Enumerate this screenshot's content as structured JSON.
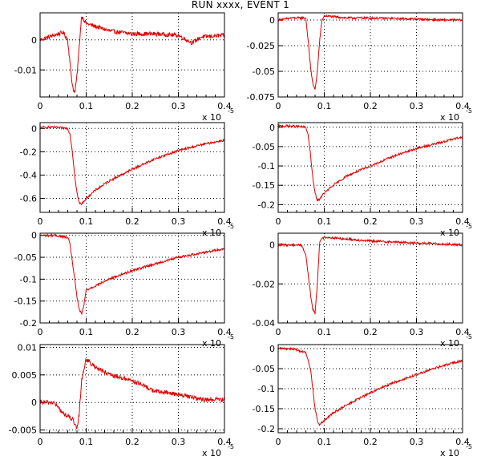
{
  "title": "RUN xxxx, EVENT    1",
  "x_multiplier": {
    "base": "x 10",
    "exponent": "-5"
  },
  "colors": {
    "trace": "#e00000",
    "frame": "#000000",
    "grid": "#000000"
  },
  "chart_data": [
    {
      "type": "line",
      "xlim": [
        0,
        0.4
      ],
      "ylim": [
        -0.019,
        0.009
      ],
      "xticks": [
        "0",
        "0.1",
        "0.2",
        "0.3",
        "0.4"
      ],
      "yticks": [
        {
          "v": 0,
          "label": "0"
        },
        {
          "v": -0.01,
          "label": "-0.01"
        }
      ],
      "grid": true,
      "series": [
        {
          "x": [
            0,
            0.02,
            0.05,
            0.06,
            0.065,
            0.07,
            0.075,
            0.08,
            0.085,
            0.09,
            0.1,
            0.12,
            0.15,
            0.2,
            0.25,
            0.3,
            0.33,
            0.35,
            0.4
          ],
          "y": [
            0,
            0.001,
            0.0025,
            0.0,
            -0.008,
            -0.015,
            -0.018,
            -0.012,
            -0.002,
            0.008,
            0.0055,
            0.0045,
            0.003,
            0.002,
            0.002,
            0.0015,
            -0.001,
            0.001,
            0.0015
          ]
        }
      ]
    },
    {
      "type": "line",
      "xlim": [
        0,
        0.4
      ],
      "ylim": [
        -0.075,
        0.007
      ],
      "xticks": [
        "0",
        "0.1",
        "0.2",
        "0.3",
        "0.4"
      ],
      "yticks": [
        {
          "v": 0,
          "label": "0"
        },
        {
          "v": -0.025,
          "label": "-0.025"
        },
        {
          "v": -0.05,
          "label": "-0.05"
        },
        {
          "v": -0.075,
          "label": "-0.075"
        }
      ],
      "grid": true,
      "series": [
        {
          "x": [
            0,
            0.03,
            0.06,
            0.065,
            0.07,
            0.075,
            0.08,
            0.085,
            0.09,
            0.095,
            0.1,
            0.15,
            0.2,
            0.3,
            0.35,
            0.4
          ],
          "y": [
            0,
            0.002,
            0.002,
            -0.02,
            -0.045,
            -0.062,
            -0.068,
            -0.05,
            -0.02,
            0.0,
            0.004,
            0.002,
            0.002,
            0.001,
            0.0,
            0.0
          ]
        }
      ]
    },
    {
      "type": "line",
      "xlim": [
        0,
        0.4
      ],
      "ylim": [
        -0.72,
        0.05
      ],
      "xticks": [
        "0",
        "0.1",
        "0.2",
        "0.3",
        "0.4"
      ],
      "yticks": [
        {
          "v": 0,
          "label": "0"
        },
        {
          "v": -0.2,
          "label": "-0.2"
        },
        {
          "v": -0.4,
          "label": "-0.4"
        },
        {
          "v": -0.6,
          "label": "-0.6"
        }
      ],
      "grid": true,
      "series": [
        {
          "x": [
            0,
            0.03,
            0.06,
            0.065,
            0.07,
            0.075,
            0.08,
            0.085,
            0.09,
            0.1,
            0.12,
            0.15,
            0.2,
            0.25,
            0.3,
            0.35,
            0.4
          ],
          "y": [
            0.01,
            0.01,
            0.0,
            -0.05,
            -0.2,
            -0.4,
            -0.55,
            -0.64,
            -0.65,
            -0.6,
            -0.53,
            -0.45,
            -0.35,
            -0.26,
            -0.19,
            -0.14,
            -0.1
          ]
        }
      ]
    },
    {
      "type": "line",
      "xlim": [
        0,
        0.4
      ],
      "ylim": [
        -0.22,
        0.012
      ],
      "xticks": [
        "0",
        "0.1",
        "0.2",
        "0.3",
        "0.4"
      ],
      "yticks": [
        {
          "v": 0,
          "label": "0"
        },
        {
          "v": -0.05,
          "label": "-0.05"
        },
        {
          "v": -0.1,
          "label": "-0.1"
        },
        {
          "v": -0.15,
          "label": "-0.15"
        },
        {
          "v": -0.2,
          "label": "-0.2"
        }
      ],
      "grid": true,
      "series": [
        {
          "x": [
            0,
            0.03,
            0.06,
            0.065,
            0.07,
            0.075,
            0.08,
            0.085,
            0.09,
            0.1,
            0.12,
            0.15,
            0.2,
            0.25,
            0.3,
            0.35,
            0.4
          ],
          "y": [
            0.003,
            0.003,
            0.0,
            -0.02,
            -0.07,
            -0.13,
            -0.17,
            -0.19,
            -0.185,
            -0.17,
            -0.15,
            -0.125,
            -0.1,
            -0.075,
            -0.055,
            -0.04,
            -0.025
          ]
        }
      ]
    },
    {
      "type": "line",
      "xlim": [
        0,
        0.4
      ],
      "ylim": [
        -0.2,
        0.005
      ],
      "xticks": [
        "0",
        "0.1",
        "0.2",
        "0.3",
        "0.4"
      ],
      "yticks": [
        {
          "v": 0,
          "label": "0"
        },
        {
          "v": -0.05,
          "label": "-0.05"
        },
        {
          "v": -0.1,
          "label": "-0.1"
        },
        {
          "v": -0.15,
          "label": "-0.15"
        },
        {
          "v": -0.2,
          "label": "-0.2"
        }
      ],
      "grid": true,
      "series": [
        {
          "x": [
            0,
            0.03,
            0.06,
            0.065,
            0.07,
            0.075,
            0.08,
            0.085,
            0.09,
            0.095,
            0.1,
            0.12,
            0.15,
            0.2,
            0.25,
            0.3,
            0.35,
            0.4
          ],
          "y": [
            0.0,
            0.0,
            -0.005,
            -0.02,
            -0.06,
            -0.1,
            -0.14,
            -0.17,
            -0.18,
            -0.16,
            -0.125,
            -0.115,
            -0.1,
            -0.08,
            -0.065,
            -0.05,
            -0.04,
            -0.03
          ]
        }
      ]
    },
    {
      "type": "line",
      "xlim": [
        0,
        0.4
      ],
      "ylim": [
        -0.04,
        0.006
      ],
      "xticks": [
        "0",
        "0.1",
        "0.2",
        "0.3",
        "0.4"
      ],
      "yticks": [
        {
          "v": 0,
          "label": "0"
        },
        {
          "v": -0.02,
          "label": "-0.02"
        },
        {
          "v": -0.04,
          "label": "-0.04"
        }
      ],
      "grid": true,
      "series": [
        {
          "x": [
            0,
            0.02,
            0.05,
            0.06,
            0.065,
            0.07,
            0.075,
            0.08,
            0.085,
            0.09,
            0.1,
            0.15,
            0.2,
            0.3,
            0.4
          ],
          "y": [
            0.0,
            0.0,
            0.0,
            -0.005,
            -0.015,
            -0.025,
            -0.033,
            -0.035,
            -0.02,
            0.002,
            0.004,
            0.003,
            0.002,
            0.001,
            0.0
          ]
        }
      ]
    },
    {
      "type": "line",
      "xlim": [
        0,
        0.4
      ],
      "ylim": [
        -0.0055,
        0.0105
      ],
      "xticks": [
        "0",
        "0.1",
        "0.2",
        "0.3",
        "0.4"
      ],
      "yticks": [
        {
          "v": 0.01,
          "label": "0.01"
        },
        {
          "v": 0.005,
          "label": "0.005"
        },
        {
          "v": 0,
          "label": "0"
        },
        {
          "v": -0.005,
          "label": "-0.005"
        }
      ],
      "grid": true,
      "series": [
        {
          "x": [
            0,
            0.03,
            0.05,
            0.07,
            0.08,
            0.085,
            0.09,
            0.1,
            0.11,
            0.15,
            0.2,
            0.25,
            0.3,
            0.35,
            0.4
          ],
          "y": [
            0.0,
            0.0,
            -0.002,
            -0.003,
            -0.005,
            -0.002,
            0.004,
            0.008,
            0.007,
            0.005,
            0.004,
            0.002,
            0.0015,
            0.0005,
            0.0005
          ]
        }
      ]
    },
    {
      "type": "line",
      "xlim": [
        0,
        0.4
      ],
      "ylim": [
        -0.21,
        0.01
      ],
      "xticks": [
        "0",
        "0.1",
        "0.2",
        "0.3",
        "0.4"
      ],
      "yticks": [
        {
          "v": 0,
          "label": "0"
        },
        {
          "v": -0.05,
          "label": "-0.05"
        },
        {
          "v": -0.1,
          "label": "-0.1"
        },
        {
          "v": -0.15,
          "label": "-0.15"
        },
        {
          "v": -0.2,
          "label": "-0.2"
        }
      ],
      "grid": true,
      "series": [
        {
          "x": [
            0,
            0.03,
            0.06,
            0.07,
            0.075,
            0.08,
            0.085,
            0.09,
            0.1,
            0.12,
            0.15,
            0.2,
            0.25,
            0.3,
            0.35,
            0.4
          ],
          "y": [
            0.0,
            0.0,
            -0.01,
            -0.05,
            -0.1,
            -0.15,
            -0.18,
            -0.19,
            -0.18,
            -0.16,
            -0.14,
            -0.11,
            -0.085,
            -0.065,
            -0.045,
            -0.03
          ]
        }
      ]
    }
  ]
}
